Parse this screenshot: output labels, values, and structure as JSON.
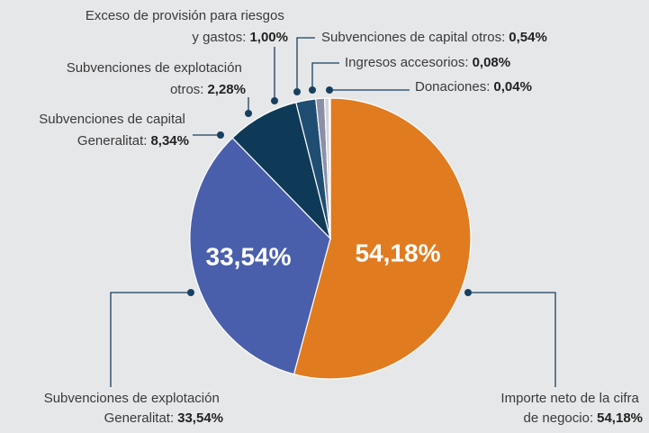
{
  "chart_data": {
    "type": "pie",
    "categories": [
      "Importe neto de la cifra de negocio:",
      "Subvenciones de explotación Generalitat:",
      "Subvenciones de capital Generalitat:",
      "Subvenciones de explotación otros:",
      "Exceso de provisión para riesgos y gastos:",
      "Subvenciones de capital otros:",
      "Ingresos accesorios:",
      "Donaciones:"
    ],
    "values": [
      54.18,
      33.54,
      8.34,
      2.28,
      1.0,
      0.54,
      0.08,
      0.04
    ],
    "value_labels": [
      "54,18%",
      "33,54%",
      "8,34%",
      "2,28%",
      "1,00%",
      "0,54%",
      "0,08%",
      "0,04%"
    ],
    "colors": [
      "#e07b20",
      "#4a5fab",
      "#0f3a57",
      "#1f4e72",
      "#8b8fa8",
      "#d3d5da",
      "#b9babe",
      "#eef0f2"
    ]
  }
}
